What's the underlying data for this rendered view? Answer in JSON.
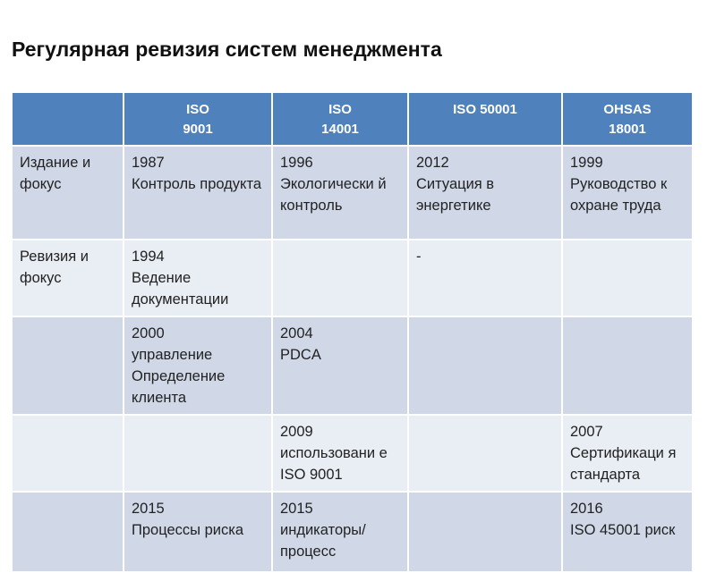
{
  "title": "Регулярная ревизия систем менеджмента",
  "colors": {
    "header": "#4f81bd",
    "row_dark": "#d0d8e8",
    "row_light": "#e9edf4"
  },
  "table": {
    "headers": [
      "",
      "ISO\n9001",
      "ISO\n14001",
      "ISO 50001",
      "OHSAS\n18001"
    ],
    "rows": [
      [
        "Издание и фокус",
        "1987\nКонтроль продукта",
        "1996\nЭкологически й контроль",
        "2012\nСитуация в энергетике",
        "1999\nРуководство к охране труда"
      ],
      [
        "Ревизия и фокус",
        "1994\nВедение документации",
        "",
        "-",
        ""
      ],
      [
        "",
        "2000\nуправление Определение клиента",
        "2004\nPDCA",
        "",
        ""
      ],
      [
        "",
        "",
        "2009\nиспользовани е ISO 9001",
        "",
        "2007\nСертификаци я стандарта"
      ],
      [
        "",
        "2015\nПроцессы риска",
        "2015\nиндикаторы/ процесс",
        "",
        "2016\nISO 45001 риск"
      ]
    ]
  }
}
